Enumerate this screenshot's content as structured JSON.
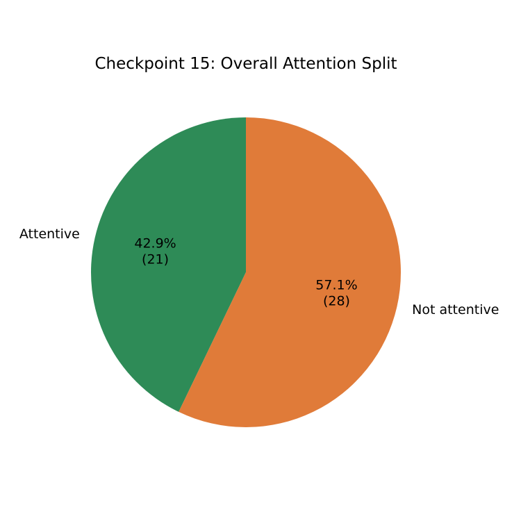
{
  "chart_data": {
    "type": "pie",
    "title": "Checkpoint 15: Overall Attention Split",
    "start_angle": "top, counter-clockwise",
    "slices": [
      {
        "label": "Attentive",
        "value": 21,
        "percent": "42.9%",
        "count_label": "(21)",
        "color": "#2e8b57"
      },
      {
        "label": "Not attentive",
        "value": 28,
        "percent": "57.1%",
        "count_label": "(28)",
        "color": "#e07b39"
      }
    ]
  }
}
